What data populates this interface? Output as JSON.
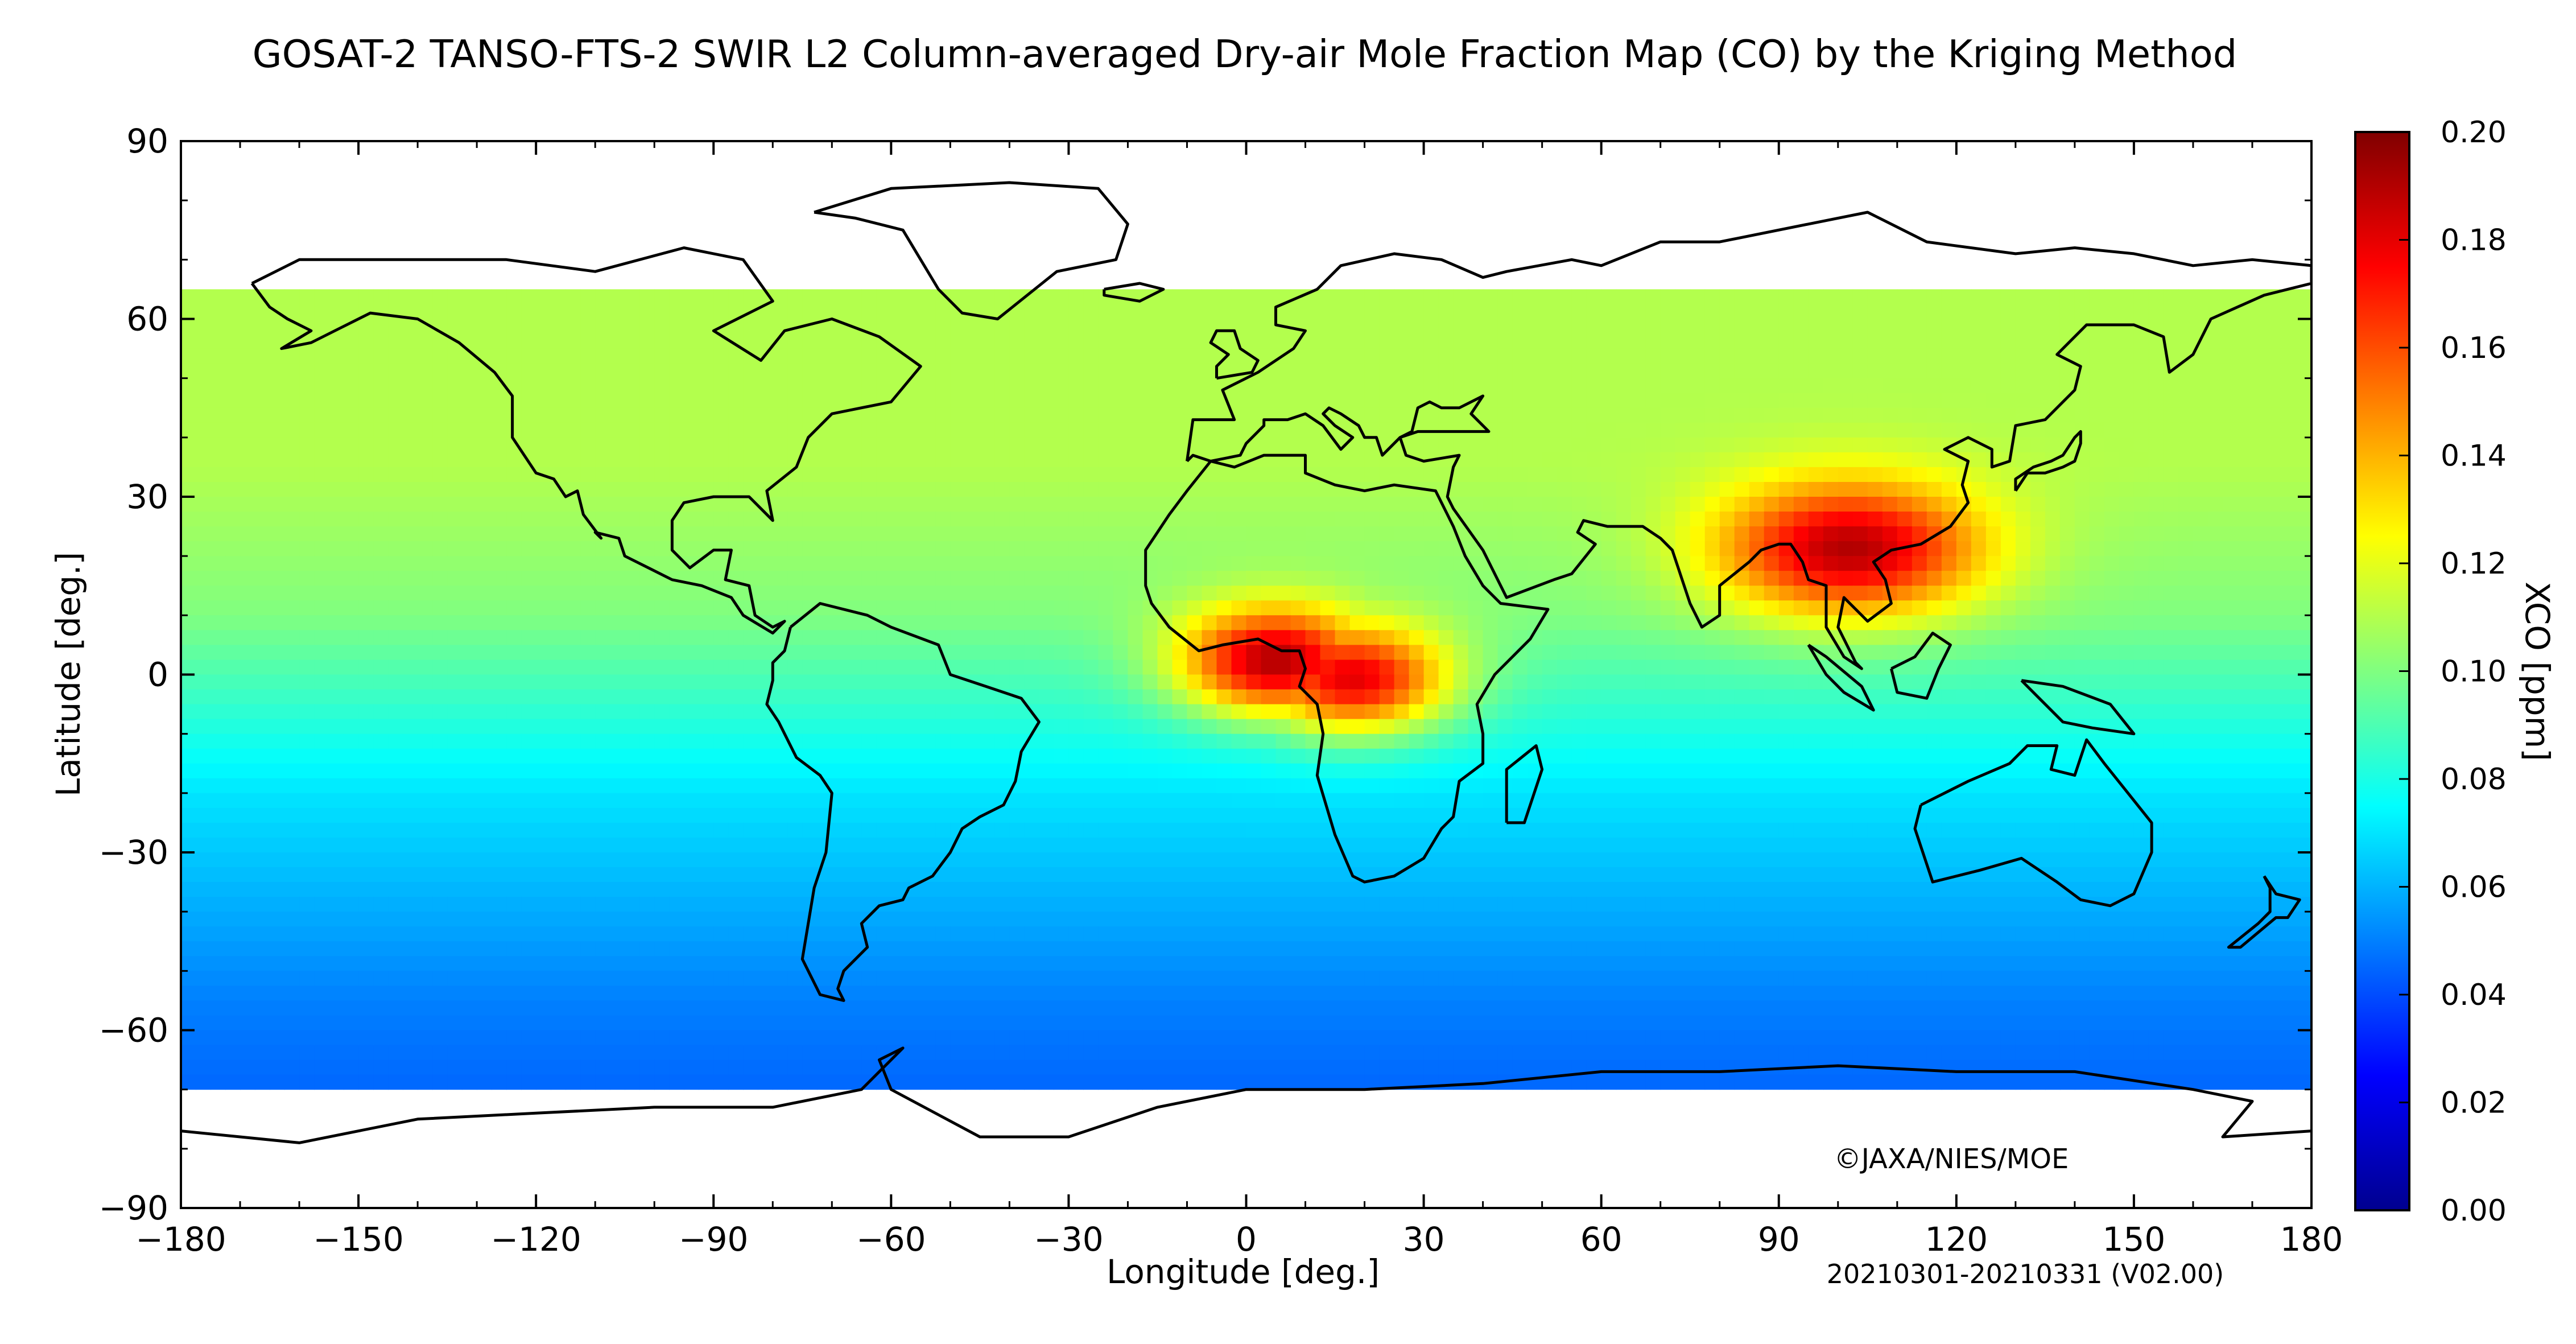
{
  "title": "GOSAT-2 TANSO-FTS-2 SWIR L2 Column-averaged Dry-air Mole Fraction Map (CO) by the Kriging Method",
  "map": {
    "type": "gridded global heat map (XCO)",
    "projection": "equirectangular",
    "lon_range": [
      -180,
      180
    ],
    "lat_range": [
      -90,
      90
    ],
    "coastlines": "black outline",
    "missing_data_color": "#ffffff",
    "data_coverage_lat": [
      -70,
      65
    ],
    "hotspots": [
      {
        "region": "Indochina / South China",
        "lon": 102,
        "lat": 21,
        "xco_ppm": 0.19
      },
      {
        "region": "Central Africa (Gulf of Guinea)",
        "lon": 5,
        "lat": 2,
        "xco_ppm": 0.19
      },
      {
        "region": "Central Africa (Congo Basin)",
        "lon": 18,
        "lat": -1,
        "xco_ppm": 0.18
      }
    ],
    "background_ranges": [
      {
        "band": "northern mid-latitudes",
        "xco_ppm": 0.11
      },
      {
        "band": "tropics",
        "xco_ppm": 0.1
      },
      {
        "band": "southern mid-latitudes",
        "xco_ppm": 0.07
      },
      {
        "band": "southern high latitudes",
        "xco_ppm": 0.05
      }
    ]
  },
  "x_axis": {
    "label": "Longitude [deg.]",
    "ticks": [
      -180,
      -150,
      -120,
      -90,
      -60,
      -30,
      0,
      30,
      60,
      90,
      120,
      150,
      180
    ],
    "tick_labels": [
      "−180",
      "−150",
      "−120",
      "−90",
      "−60",
      "−30",
      "0",
      "30",
      "60",
      "90",
      "120",
      "150",
      "180"
    ]
  },
  "y_axis": {
    "label": "Latitude [deg.]",
    "ticks": [
      90,
      60,
      30,
      0,
      -30,
      -60,
      -90
    ],
    "tick_labels": [
      "90",
      "60",
      "30",
      "0",
      "−30",
      "−60",
      "−90"
    ]
  },
  "colorbar": {
    "label": "XCO [ppm]",
    "min": 0.0,
    "max": 0.2,
    "tick_labels": [
      "0.20",
      "0.18",
      "0.16",
      "0.14",
      "0.12",
      "0.10",
      "0.08",
      "0.06",
      "0.04",
      "0.02",
      "0.00"
    ],
    "colormap": "jet",
    "stops": [
      "#00008f",
      "#0000ff",
      "#0080ff",
      "#00ffff",
      "#80ff80",
      "#ffff00",
      "#ff8000",
      "#ff0000",
      "#800000"
    ]
  },
  "credit": "©JAXA/NIES/MOE",
  "period_note": "20210301-20210331 (V02.00)"
}
